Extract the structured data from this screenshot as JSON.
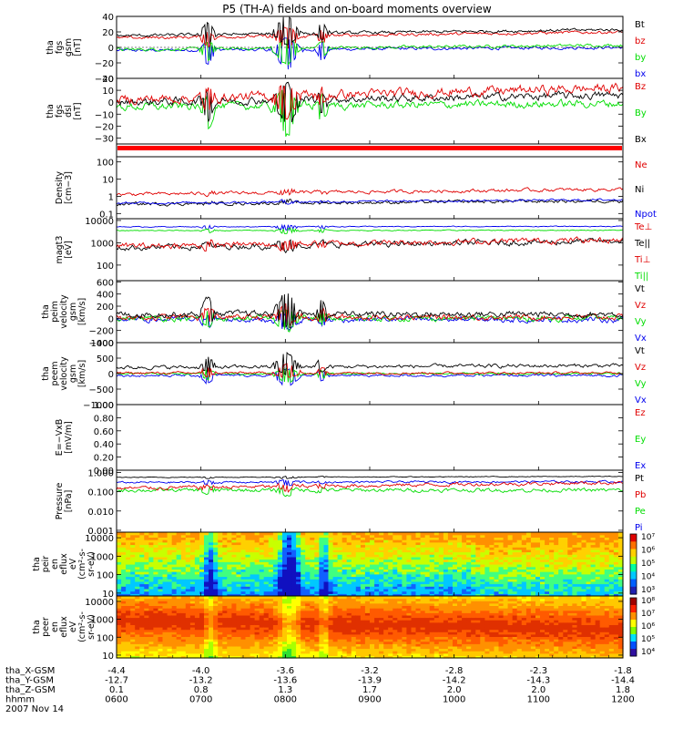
{
  "title": "P5 (TH-A) fields and on-board moments overview",
  "colors": {
    "black": "#000000",
    "red": "#e00000",
    "green": "#00dd00",
    "blue": "#0000ee"
  },
  "chart_data": {
    "type": "multi-panel time series with spectrograms",
    "x_axis": {
      "tick_times": [
        "0600",
        "0700",
        "0800",
        "0900",
        "1000",
        "1100",
        "1200"
      ],
      "rows": [
        {
          "label": "tha_X-GSM",
          "values": [
            "-4.4",
            "-4.0",
            "-3.6",
            "-3.2",
            "-2.8",
            "-2.3",
            "-1.8"
          ]
        },
        {
          "label": "tha_Y-GSM",
          "values": [
            "-12.7",
            "-13.2",
            "-13.6",
            "-13.9",
            "-14.2",
            "-14.3",
            "-14.4"
          ]
        },
        {
          "label": "tha_Z-GSM",
          "values": [
            "0.1",
            "0.8",
            "1.3",
            "1.7",
            "2.0",
            "2.0",
            "1.8"
          ]
        },
        {
          "label": "hhmm",
          "values": [
            "0600",
            "0700",
            "0800",
            "0900",
            "1000",
            "1100",
            "1200"
          ]
        }
      ],
      "date": "2007 Nov 14"
    },
    "panels": [
      {
        "id": "fgs_gsm",
        "ylabel": [
          "tha",
          "fgs",
          "gsm",
          "[nT]"
        ],
        "ticks": [
          "40",
          "20",
          "0",
          "−20",
          "−40"
        ],
        "tickvals": [
          40,
          20,
          0,
          -20,
          -40
        ],
        "ylim": [
          -40,
          40
        ],
        "log": false,
        "legend": [
          {
            "label": "Bt",
            "color": "black"
          },
          {
            "label": "bz",
            "color": "red"
          },
          {
            "label": "by",
            "color": "green"
          },
          {
            "label": "bx",
            "color": "blue"
          }
        ]
      },
      {
        "id": "fgs_dsl",
        "ylabel": [
          "tha",
          "fgs",
          "dsl",
          "[nT]"
        ],
        "ticks": [
          "20",
          "10",
          "0",
          "−10",
          "−20",
          "−30"
        ],
        "tickvals": [
          20,
          10,
          0,
          -10,
          -20,
          -30
        ],
        "ylim": [
          -35,
          20
        ],
        "log": false,
        "legend": [
          {
            "label": "Bz",
            "color": "red"
          },
          {
            "label": "By",
            "color": "green"
          },
          {
            "label": "Bx",
            "color": "black"
          }
        ]
      },
      {
        "id": "density",
        "ylabel": [
          "Density",
          "[cm−3]"
        ],
        "ticks": [
          "100",
          "10",
          "1",
          "0.1"
        ],
        "tickvals": [
          100,
          10,
          1,
          0.1
        ],
        "ylim": [
          0.05,
          200
        ],
        "log": true,
        "legend": [
          {
            "label": "Ne",
            "color": "red"
          },
          {
            "label": "Ni",
            "color": "black"
          },
          {
            "label": "Npot",
            "color": "blue"
          }
        ]
      },
      {
        "id": "temperature",
        "ylabel": [
          "magt3",
          "[eV]"
        ],
        "ticks": [
          "10000",
          "1000",
          "100"
        ],
        "tickvals": [
          10000,
          1000,
          100
        ],
        "ylim": [
          20,
          12000
        ],
        "log": true,
        "legend": [
          {
            "label": "Te⊥",
            "color": "red"
          },
          {
            "label": "Te||",
            "color": "black"
          },
          {
            "label": "Ti⊥",
            "color": "red"
          },
          {
            "label": "Ti||",
            "color": "green"
          }
        ]
      },
      {
        "id": "peim_velocity",
        "ylabel": [
          "tha",
          "peim",
          "velocity",
          "gsm",
          "[km/s]"
        ],
        "ticks": [
          "600",
          "400",
          "200",
          "0",
          "−200",
          "−400"
        ],
        "tickvals": [
          600,
          400,
          200,
          0,
          -200,
          -400
        ],
        "ylim": [
          -400,
          620
        ],
        "log": false,
        "legend": [
          {
            "label": "Vt",
            "color": "black"
          },
          {
            "label": "Vz",
            "color": "red"
          },
          {
            "label": "Vy",
            "color": "green"
          },
          {
            "label": "Vx",
            "color": "blue"
          }
        ]
      },
      {
        "id": "peem_velocity",
        "ylabel": [
          "tha",
          "peem",
          "velocity",
          "gsm",
          "[km/s]"
        ],
        "ticks": [
          "1000",
          "500",
          "0",
          "−500",
          "−1000"
        ],
        "tickvals": [
          1000,
          500,
          0,
          -500,
          -1000
        ],
        "ylim": [
          -1000,
          1000
        ],
        "log": false,
        "legend": [
          {
            "label": "Vt",
            "color": "black"
          },
          {
            "label": "Vz",
            "color": "red"
          },
          {
            "label": "Vy",
            "color": "green"
          },
          {
            "label": "Vx",
            "color": "blue"
          }
        ]
      },
      {
        "id": "efield",
        "ylabel": [
          "E=−VxB",
          "[mV/m]"
        ],
        "ticks": [
          "1.00",
          "0.80",
          "0.60",
          "0.40",
          "0.20",
          "0.00"
        ],
        "tickvals": [
          1,
          0.8,
          0.6,
          0.4,
          0.2,
          0
        ],
        "ylim": [
          0,
          1
        ],
        "log": false,
        "legend": [
          {
            "label": "Ez",
            "color": "red"
          },
          {
            "label": "Ey",
            "color": "green"
          },
          {
            "label": "Ex",
            "color": "blue"
          }
        ]
      },
      {
        "id": "pressure",
        "ylabel": [
          "Pressure",
          "[nPa]"
        ],
        "ticks": [
          "1.000",
          "0.100",
          "0.010",
          "0.001"
        ],
        "tickvals": [
          1,
          0.1,
          0.01,
          0.001
        ],
        "ylim": [
          0.0008,
          1.3
        ],
        "log": true,
        "legend": [
          {
            "label": "Pt",
            "color": "black"
          },
          {
            "label": "Pb",
            "color": "red"
          },
          {
            "label": "Pe",
            "color": "green"
          },
          {
            "label": "Pi",
            "color": "blue"
          }
        ]
      },
      {
        "id": "peir_spec",
        "ylabel": [
          "tha",
          "peir",
          "en",
          "eflux",
          "eV",
          "(cm²-s-",
          "sr-eV)"
        ],
        "ticks": [
          "10000",
          "1000",
          "100",
          "10"
        ],
        "tickvals": [
          10000,
          1000,
          100,
          10
        ],
        "ylim": [
          7,
          20000
        ],
        "log": true,
        "colorbar_ticks": [
          "10⁷",
          "10⁶",
          "10⁵",
          "10⁴",
          "10³"
        ]
      },
      {
        "id": "peer_spec",
        "ylabel": [
          "tha",
          "peer",
          "en",
          "eflux",
          "eV",
          "(cm²-s-",
          "sr-eV)"
        ],
        "ticks": [
          "10000",
          "1000",
          "100",
          "10"
        ],
        "tickvals": [
          10000,
          1000,
          100,
          10
        ],
        "ylim": [
          7,
          20000
        ],
        "log": true,
        "colorbar_ticks": [
          "10⁸",
          "10⁷",
          "10⁶",
          "10⁵",
          "10⁴"
        ]
      }
    ]
  }
}
